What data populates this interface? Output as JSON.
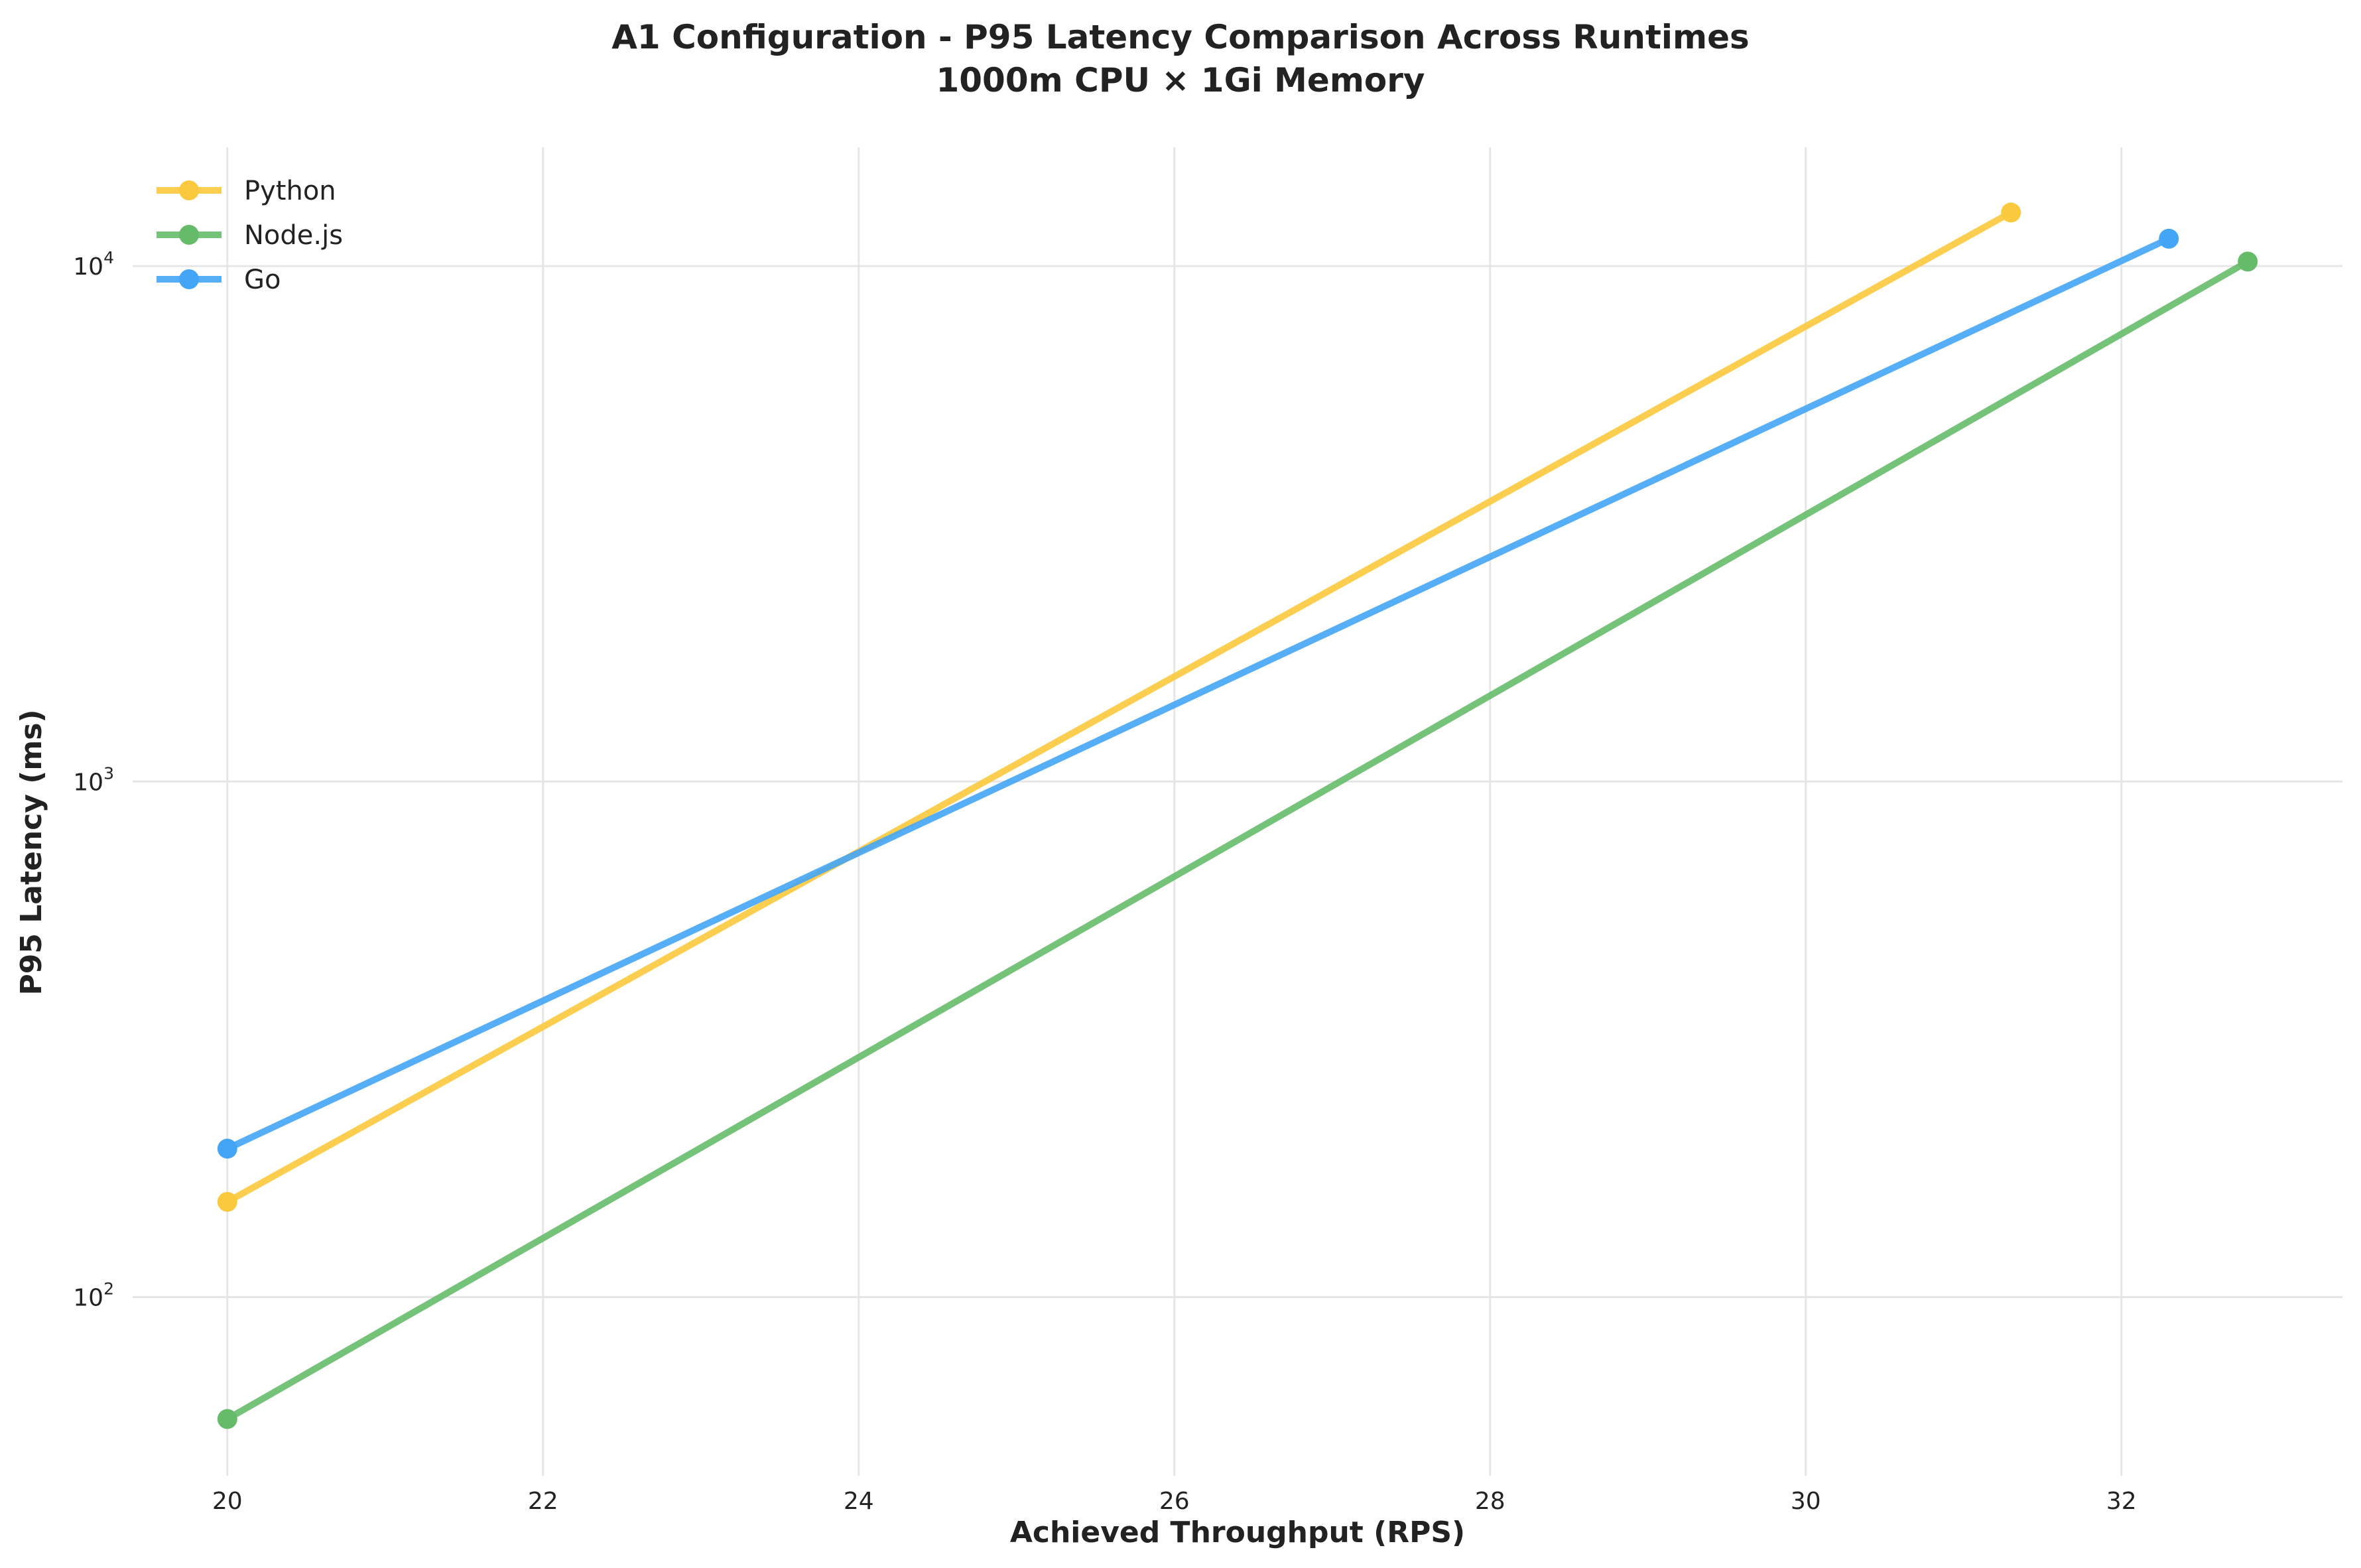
{
  "chart_data": {
    "type": "line",
    "title": "A1 Configuration - P95 Latency Comparison Across Runtimes",
    "subtitle": "1000m CPU × 1Gi Memory",
    "xlabel": "Achieved Throughput (RPS)",
    "ylabel": "P95 Latency (ms)",
    "xlim": [
      19.4,
      33.4
    ],
    "ylim": [
      45,
      17000
    ],
    "yscale": "log",
    "grid": true,
    "legend": "upper-left",
    "x_ticks": [
      {
        "value": 20,
        "label": "20"
      },
      {
        "value": 22,
        "label": "22"
      },
      {
        "value": 24,
        "label": "24"
      },
      {
        "value": 26,
        "label": "26"
      },
      {
        "value": 28,
        "label": "28"
      },
      {
        "value": 30,
        "label": "30"
      },
      {
        "value": 32,
        "label": "32"
      }
    ],
    "y_ticks": [
      {
        "value": 100,
        "base": "10",
        "exp": "2"
      },
      {
        "value": 1000,
        "base": "10",
        "exp": "3"
      },
      {
        "value": 10000,
        "base": "10",
        "exp": "4"
      }
    ],
    "series": [
      {
        "name": "Python",
        "color": "#FBC93D",
        "points": [
          {
            "x": 20,
            "y": 153
          },
          {
            "x": 31.3,
            "y": 12700
          }
        ]
      },
      {
        "name": "Node.js",
        "color": "#66BB6A",
        "points": [
          {
            "x": 20,
            "y": 58
          },
          {
            "x": 32.8,
            "y": 10200
          }
        ]
      },
      {
        "name": "Go",
        "color": "#42A5F5",
        "points": [
          {
            "x": 20,
            "y": 194
          },
          {
            "x": 32.3,
            "y": 11300
          }
        ]
      }
    ]
  }
}
